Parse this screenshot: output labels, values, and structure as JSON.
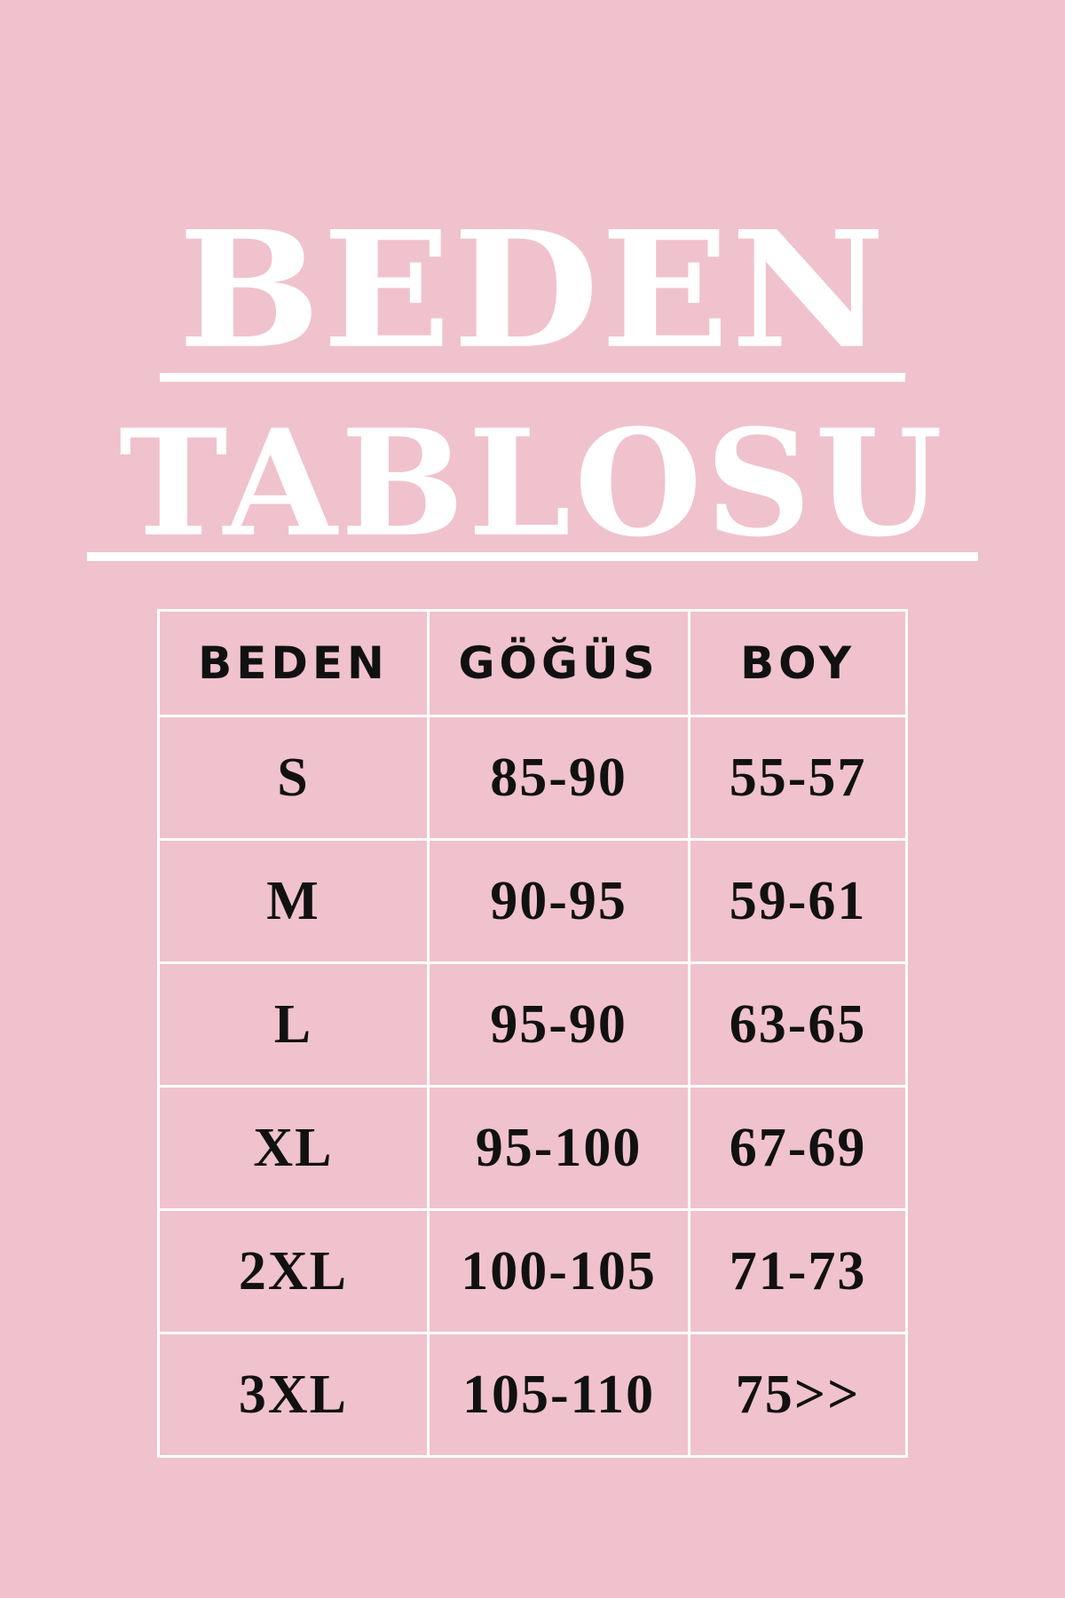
{
  "title": {
    "line1": "BEDEN",
    "line2": "TABLOSU"
  },
  "colors": {
    "background": "#f0c2cd",
    "title": "#ffffff",
    "text": "#111111",
    "grid": "#ffffff"
  },
  "table": {
    "headers": [
      "BEDEN",
      "GÖĞÜS",
      "BOY"
    ],
    "rows": [
      [
        "S",
        "85-90",
        "55-57"
      ],
      [
        "M",
        "90-95",
        "59-61"
      ],
      [
        "L",
        "95-90",
        "63-65"
      ],
      [
        "XL",
        "95-100",
        "67-69"
      ],
      [
        "2XL",
        "100-105",
        "71-73"
      ],
      [
        "3XL",
        "105-110",
        "75>>"
      ]
    ]
  }
}
